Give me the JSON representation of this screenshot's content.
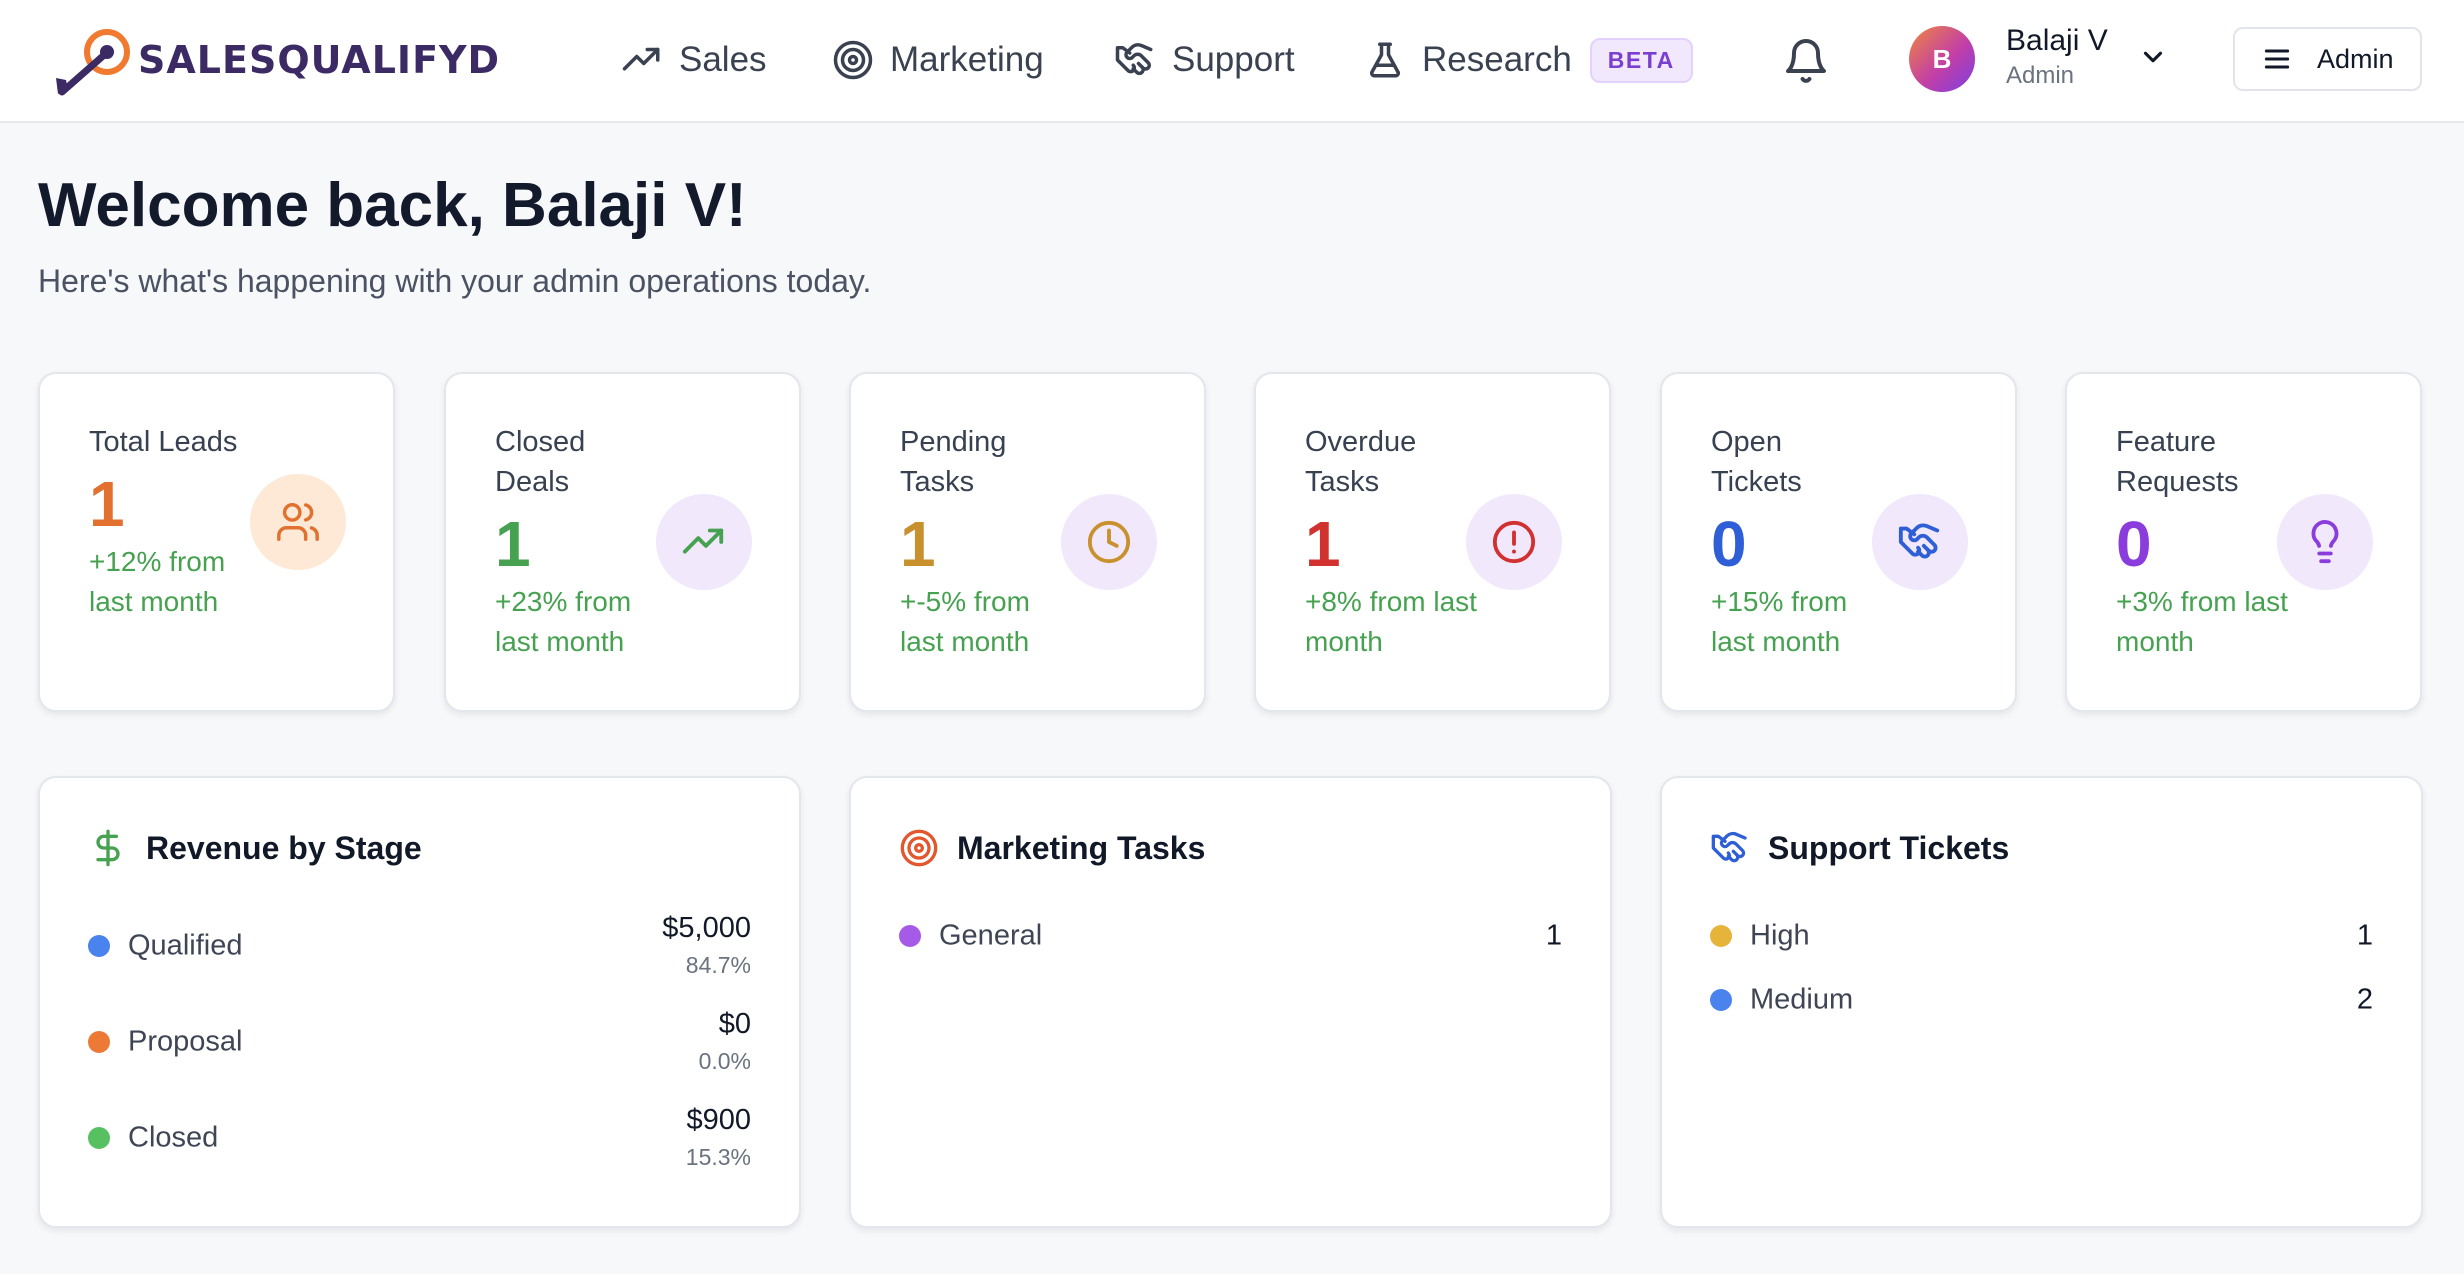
{
  "header": {
    "logo_text": "SALESQUALIFYD",
    "nav": [
      {
        "label": "Sales",
        "icon": "trending-up-icon"
      },
      {
        "label": "Marketing",
        "icon": "target-icon"
      },
      {
        "label": "Support",
        "icon": "handshake-icon"
      },
      {
        "label": "Research",
        "icon": "flask-icon",
        "badge": "BETA"
      }
    ],
    "user": {
      "initial": "B",
      "name": "Balaji V",
      "role": "Admin"
    },
    "admin_button": "Admin"
  },
  "greeting": {
    "title": "Welcome back, Balaji V!",
    "subtitle": "Here's what's happening with your admin operations today."
  },
  "stats": [
    {
      "label": "Total Leads",
      "value": "1",
      "change": "+12% from last month",
      "icon": "users-icon",
      "value_color": "#e2702e",
      "icon_bg": "#fde9d6",
      "icon_color": "#e2702e"
    },
    {
      "label": "Closed Deals",
      "value": "1",
      "change": "+23% from last month",
      "icon": "trending-up-icon",
      "value_color": "#46a150",
      "icon_bg": "#f1e8fc",
      "icon_color": "#46a150"
    },
    {
      "label": "Pending Tasks",
      "value": "1",
      "change": "+-5% from last month",
      "icon": "clock-icon",
      "value_color": "#c8912e",
      "icon_bg": "#f1e8fc",
      "icon_color": "#c8912e"
    },
    {
      "label": "Overdue Tasks",
      "value": "1",
      "change": "+8% from last month",
      "icon": "alert-circle-icon",
      "value_color": "#d1312f",
      "icon_bg": "#f1e8fc",
      "icon_color": "#d1312f"
    },
    {
      "label": "Open Tickets",
      "value": "0",
      "change": "+15% from last month",
      "icon": "handshake-icon",
      "value_color": "#2f5fd6",
      "icon_bg": "#f1e8fc",
      "icon_color": "#2f5fd6"
    },
    {
      "label": "Feature Requests",
      "value": "0",
      "change": "+3% from last month",
      "icon": "lightbulb-icon",
      "value_color": "#8a3ddc",
      "icon_bg": "#f1e8fc",
      "icon_color": "#8a3ddc"
    }
  ],
  "revenue": {
    "title": "Revenue by Stage",
    "icon": "dollar-icon",
    "rows": [
      {
        "label": "Qualified",
        "value": "$5,000",
        "pct": "84.7%",
        "color": "#4a82ee"
      },
      {
        "label": "Proposal",
        "value": "$0",
        "pct": "0.0%",
        "color": "#ec7a36"
      },
      {
        "label": "Closed",
        "value": "$900",
        "pct": "15.3%",
        "color": "#57c061"
      }
    ]
  },
  "marketing": {
    "title": "Marketing Tasks",
    "icon": "target-icon",
    "rows": [
      {
        "label": "General",
        "count": "1",
        "color": "#a55be8"
      }
    ]
  },
  "support": {
    "title": "Support Tickets",
    "icon": "handshake-icon",
    "rows": [
      {
        "label": "High",
        "count": "1",
        "color": "#e6b43b"
      },
      {
        "label": "Medium",
        "count": "2",
        "color": "#4a82ee"
      }
    ]
  }
}
